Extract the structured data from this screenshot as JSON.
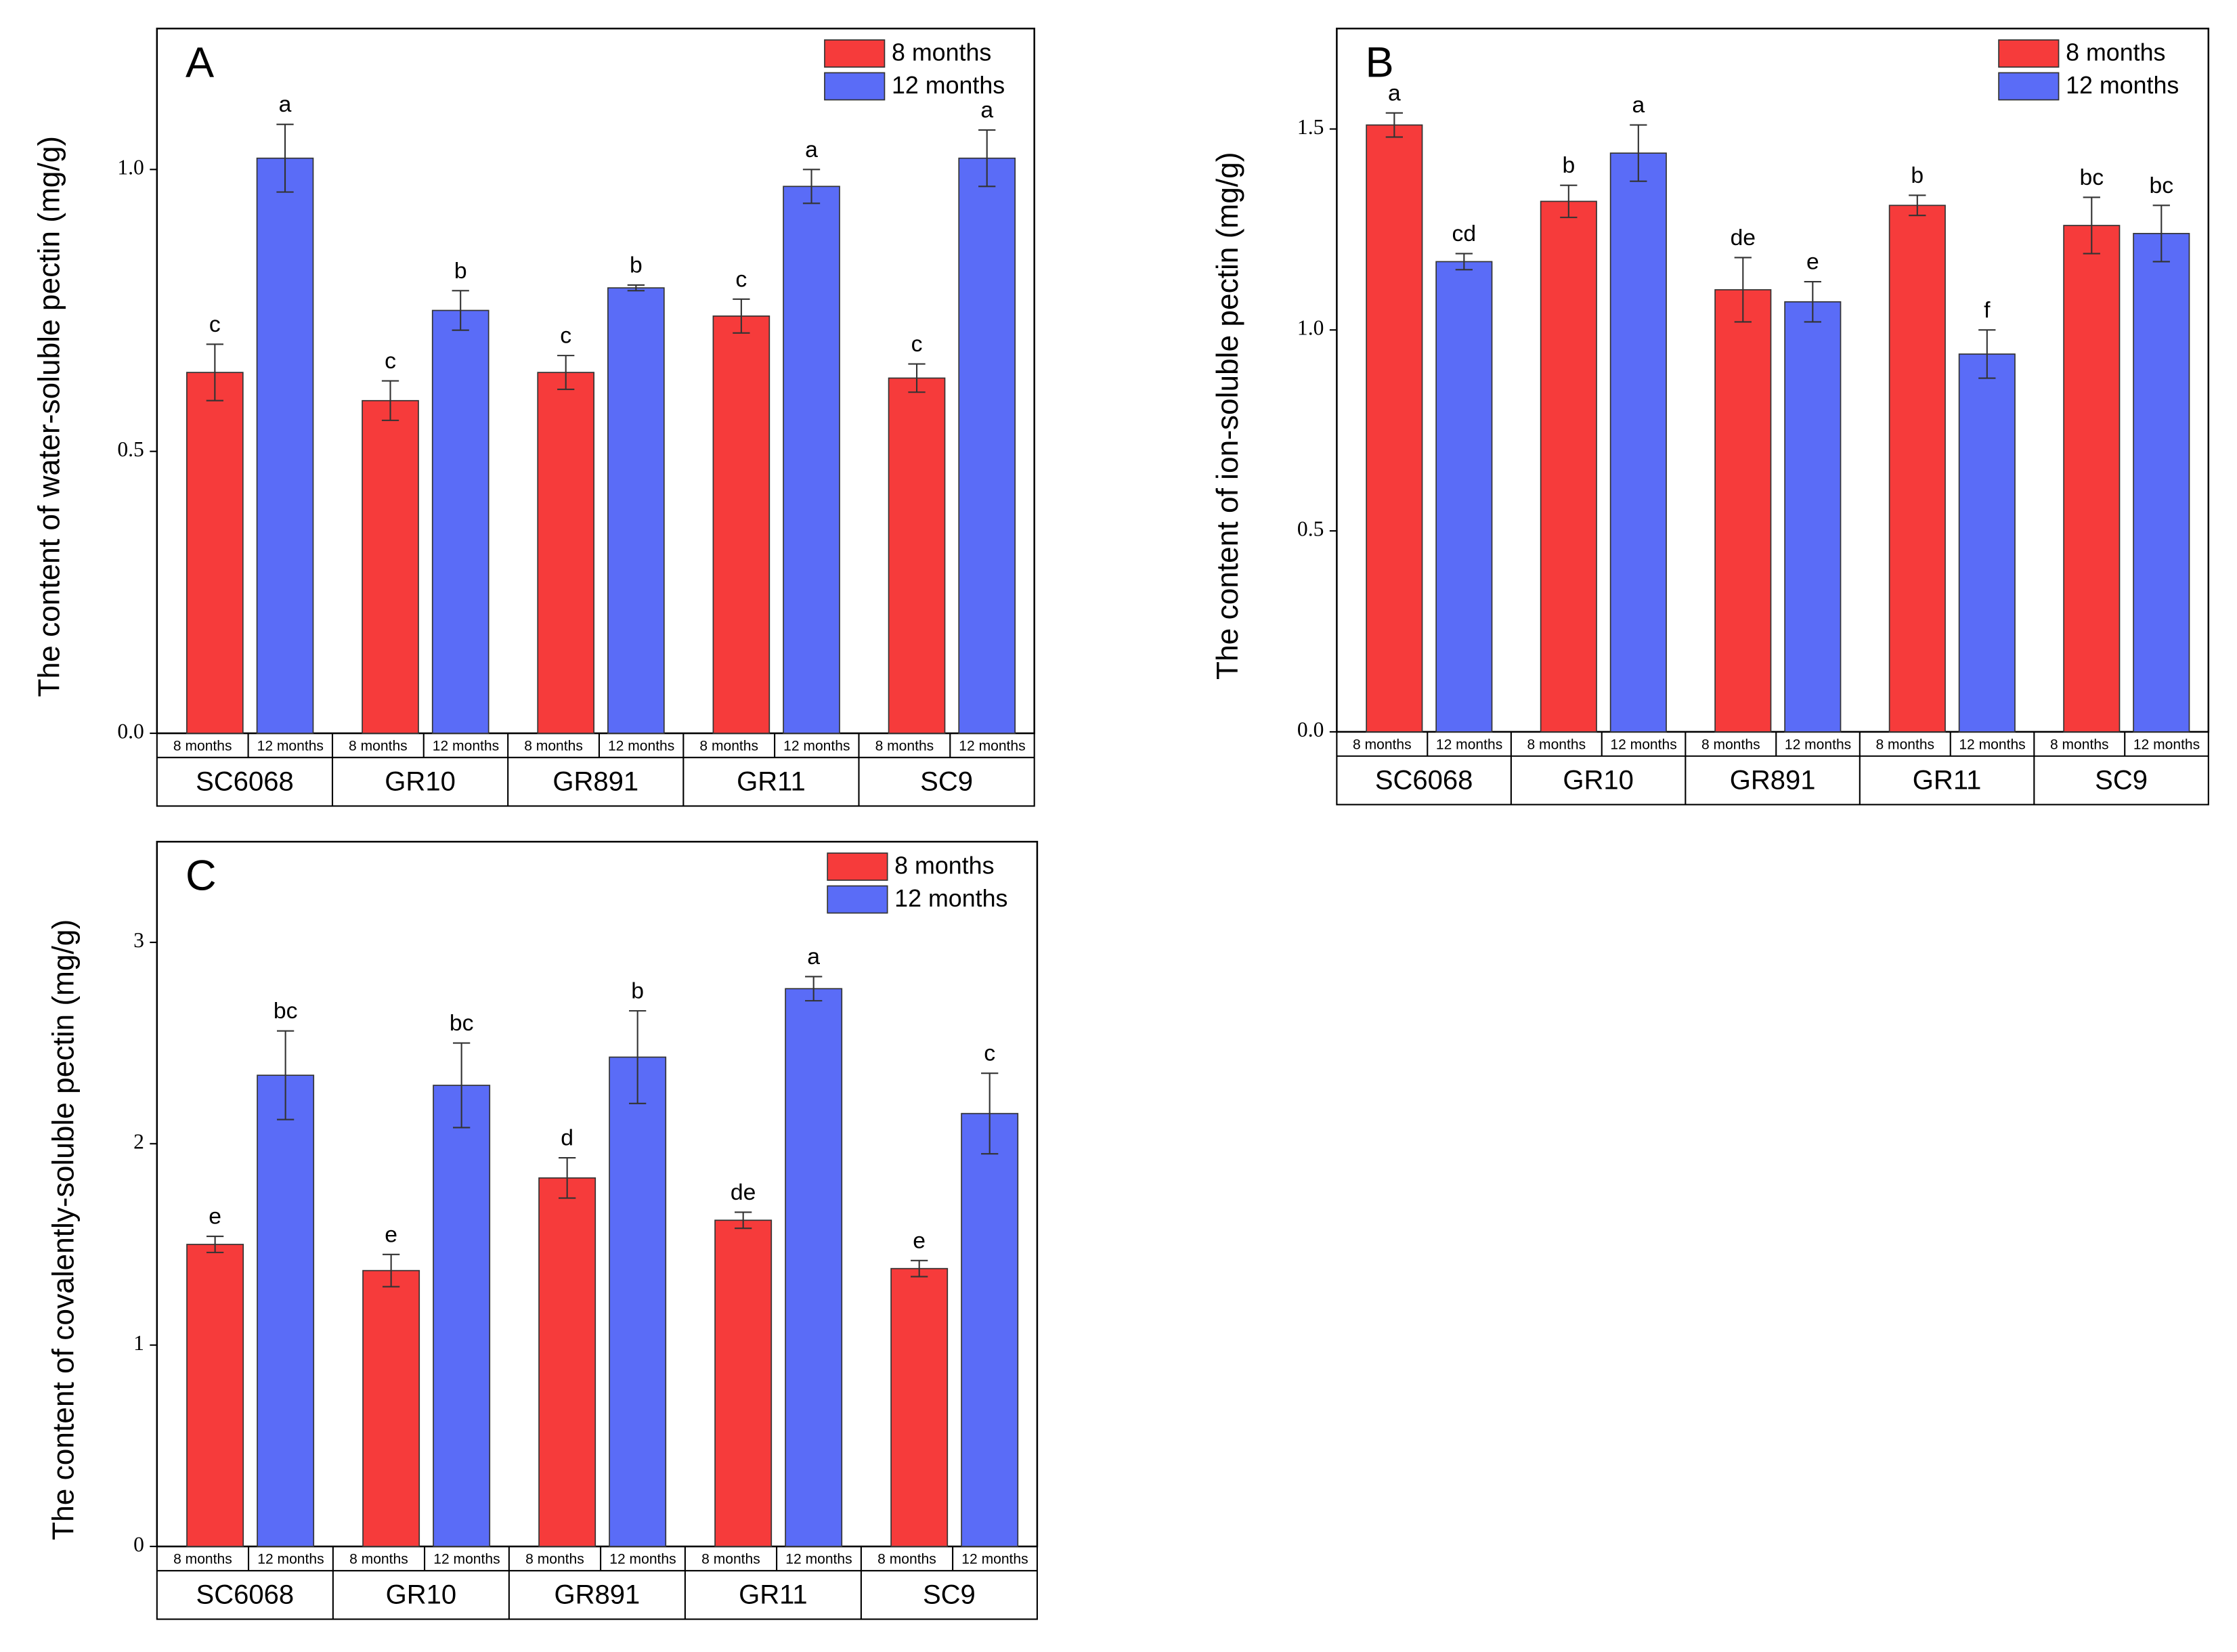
{
  "chart_data": [
    {
      "type": "bar",
      "panel": "A",
      "ylabel": "The content of water-soluble pectin (mg/g)",
      "categories": [
        "SC6068",
        "GR10",
        "GR891",
        "GR11",
        "SC9"
      ],
      "series": [
        {
          "name": "8 months",
          "color": "#f63b3b",
          "values": [
            0.64,
            0.59,
            0.64,
            0.74,
            0.63
          ],
          "errors": [
            0.05,
            0.035,
            0.03,
            0.03,
            0.025
          ],
          "labels": [
            "c",
            "c",
            "c",
            "c",
            "c"
          ]
        },
        {
          "name": "12 months",
          "color": "#5a6cf7",
          "values": [
            1.02,
            0.75,
            0.79,
            0.97,
            1.02
          ],
          "errors": [
            0.06,
            0.035,
            0.005,
            0.03,
            0.05
          ],
          "labels": [
            "a",
            "b",
            "b",
            "a",
            "a"
          ]
        }
      ],
      "ylim": [
        0,
        1.25
      ],
      "yticks": [
        {
          "value": 0,
          "label": "0.0"
        },
        0.5,
        {
          "value": 1,
          "label": "1.0"
        }
      ],
      "legend": "upper right"
    },
    {
      "type": "bar",
      "panel": "B",
      "ylabel": "The content of ion-soluble pectin (mg/g)",
      "categories": [
        "SC6068",
        "GR10",
        "GR891",
        "GR11",
        "SC9"
      ],
      "series": [
        {
          "name": "8 months",
          "color": "#f63b3b",
          "values": [
            1.51,
            1.32,
            1.1,
            1.31,
            1.26
          ],
          "errors": [
            0.03,
            0.04,
            0.08,
            0.025,
            0.07
          ],
          "labels": [
            "a",
            "b",
            "de",
            "b",
            "bc"
          ]
        },
        {
          "name": "12 months",
          "color": "#5a6cf7",
          "values": [
            1.17,
            1.44,
            1.07,
            0.94,
            1.24
          ],
          "errors": [
            0.02,
            0.07,
            0.05,
            0.06,
            0.07
          ],
          "labels": [
            "cd",
            "a",
            "e",
            "f",
            "bc"
          ]
        }
      ],
      "ylim": [
        0,
        1.75
      ],
      "yticks": [
        {
          "value": 0,
          "label": "0.0"
        },
        0.5,
        {
          "value": 1,
          "label": "1.0"
        },
        1.5
      ],
      "legend": "upper right"
    },
    {
      "type": "bar",
      "panel": "C",
      "ylabel": "The content of covalently-soluble pectin (mg/g)",
      "categories": [
        "SC6068",
        "GR10",
        "GR891",
        "GR11",
        "SC9"
      ],
      "series": [
        {
          "name": "8 months",
          "color": "#f63b3b",
          "values": [
            1.5,
            1.37,
            1.83,
            1.62,
            1.38
          ],
          "errors": [
            0.04,
            0.08,
            0.1,
            0.04,
            0.04
          ],
          "labels": [
            "e",
            "e",
            "d",
            "de",
            "e"
          ]
        },
        {
          "name": "12 months",
          "color": "#5a6cf7",
          "values": [
            2.34,
            2.29,
            2.43,
            2.77,
            2.15
          ],
          "errors": [
            0.22,
            0.21,
            0.23,
            0.06,
            0.2
          ],
          "labels": [
            "bc",
            "bc",
            "b",
            "a",
            "c"
          ]
        }
      ],
      "ylim": [
        0,
        3.5
      ],
      "yticks": [
        0,
        1,
        2,
        3
      ],
      "legend": "upper right"
    }
  ]
}
